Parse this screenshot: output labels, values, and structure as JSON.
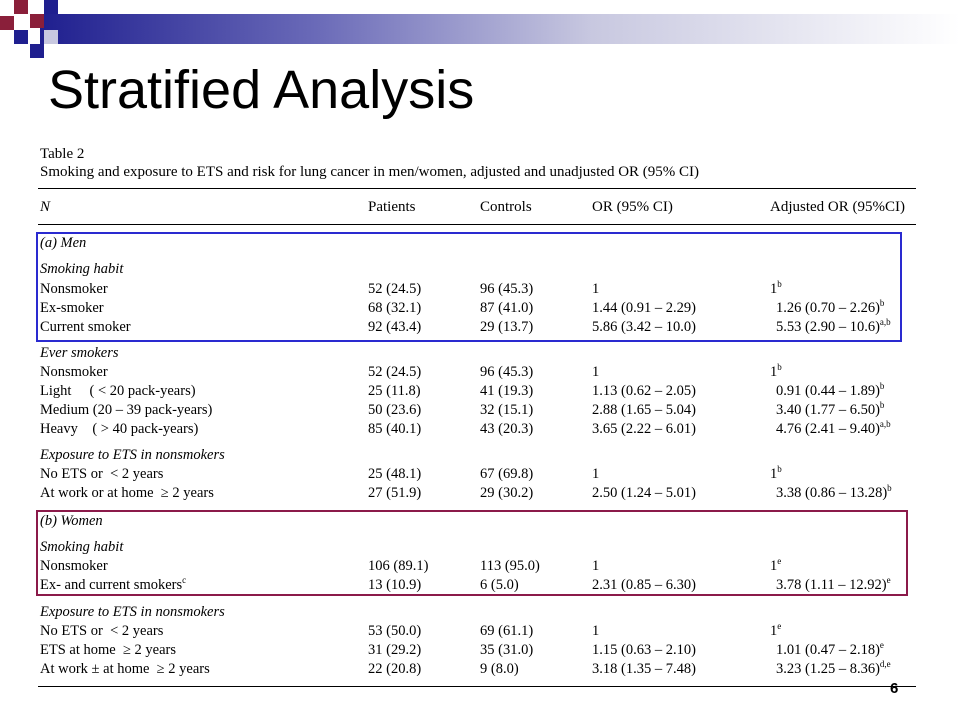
{
  "slide": {
    "title": "Stratified Analysis",
    "page_number": "6"
  },
  "table": {
    "label": "Table 2",
    "caption": "Smoking and exposure to ETS and risk for lung cancer in men/women, adjusted and unadjusted OR (95% CI)",
    "headers": [
      "N",
      "Patients",
      "Controls",
      "OR (95% CI)",
      "Adjusted OR (95%CI)"
    ],
    "rows": [
      {
        "kind": "section",
        "label": "(a) Men"
      },
      {
        "kind": "subsection",
        "label": "Smoking habit"
      },
      {
        "kind": "data",
        "label": "Nonsmoker",
        "patients": "52 (24.5)",
        "controls": "96 (45.3)",
        "or": "1",
        "adj": "1",
        "sup": "b"
      },
      {
        "kind": "data",
        "label": "Ex-smoker",
        "patients": "68 (32.1)",
        "controls": "87 (41.0)",
        "or": "1.44 (0.91 – 2.29)",
        "adj": "1.26 (0.70 – 2.26)",
        "sup": "b"
      },
      {
        "kind": "data",
        "label": "Current smoker",
        "patients": "92 (43.4)",
        "controls": "29 (13.7)",
        "or": "5.86 (3.42 – 10.0)",
        "adj": "5.53 (2.90 – 10.6)",
        "sup": "a,b"
      },
      {
        "kind": "subsection",
        "label": "Ever smokers"
      },
      {
        "kind": "data",
        "label": "Nonsmoker",
        "patients": "52 (24.5)",
        "controls": "96 (45.3)",
        "or": "1",
        "adj": "1",
        "sup": "b"
      },
      {
        "kind": "data",
        "label": "Light     ( < 20 pack-years)",
        "patients": "25 (11.8)",
        "controls": "41 (19.3)",
        "or": "1.13 (0.62 – 2.05)",
        "adj": "0.91 (0.44 – 1.89)",
        "sup": "b"
      },
      {
        "kind": "data",
        "label": "Medium (20 – 39 pack-years)",
        "patients": "50 (23.6)",
        "controls": "32 (15.1)",
        "or": "2.88 (1.65 – 5.04)",
        "adj": "3.40 (1.77 – 6.50)",
        "sup": "b"
      },
      {
        "kind": "data",
        "label": "Heavy    ( > 40 pack-years)",
        "patients": "85 (40.1)",
        "controls": "43 (20.3)",
        "or": "3.65 (2.22 – 6.01)",
        "adj": "4.76 (2.41 – 9.40)",
        "sup": "a,b"
      },
      {
        "kind": "subsection",
        "label": "Exposure to ETS in nonsmokers"
      },
      {
        "kind": "data",
        "label": "No ETS or  < 2 years",
        "patients": "25 (48.1)",
        "controls": "67 (69.8)",
        "or": "1",
        "adj": "1",
        "sup": "b"
      },
      {
        "kind": "data",
        "label": "At work or at home  ≥ 2 years",
        "patients": "27 (51.9)",
        "controls": "29 (30.2)",
        "or": "2.50 (1.24 – 5.01)",
        "adj": "3.38 (0.86 – 13.28)",
        "sup": "b"
      },
      {
        "kind": "section",
        "label": "(b) Women"
      },
      {
        "kind": "subsection",
        "label": "Smoking habit"
      },
      {
        "kind": "data",
        "label": "Nonsmoker",
        "patients": "106 (89.1)",
        "controls": "113 (95.0)",
        "or": "1",
        "adj": "1",
        "sup": "e"
      },
      {
        "kind": "data",
        "label": "Ex- and current smokers",
        "label_sup": "c",
        "patients": "13 (10.9)",
        "controls": "6 (5.0)",
        "or": "2.31 (0.85 – 6.30)",
        "adj": "3.78 (1.11 – 12.92)",
        "sup": "e"
      },
      {
        "kind": "subsection",
        "label": "Exposure to ETS in nonsmokers"
      },
      {
        "kind": "data",
        "label": "No ETS or  < 2 years",
        "patients": "53 (50.0)",
        "controls": "69 (61.1)",
        "or": "1",
        "adj": "1",
        "sup": "e"
      },
      {
        "kind": "data",
        "label": "ETS at home  ≥ 2 years",
        "patients": "31 (29.2)",
        "controls": "35 (31.0)",
        "or": "1.15 (0.63 – 2.10)",
        "adj": "1.01 (0.47 – 2.18)",
        "sup": "e"
      },
      {
        "kind": "data",
        "label": "At work ± at home  ≥ 2 years",
        "patients": "22 (20.8)",
        "controls": "9 (8.0)",
        "or": "3.18 (1.35 – 7.48)",
        "adj": "3.23 (1.25 – 8.36)",
        "sup": "d,e"
      }
    ]
  },
  "highlights": {
    "men_smoking_color": "#2a2ad0",
    "women_smoking_color": "#8b1a4a"
  }
}
